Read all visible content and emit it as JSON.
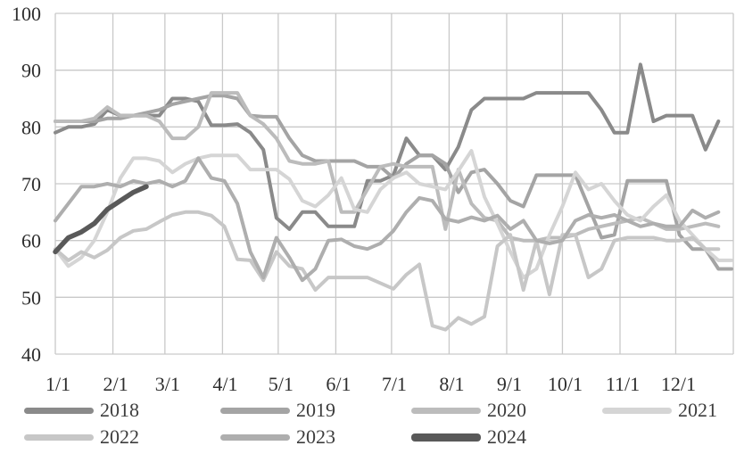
{
  "chart_data": {
    "type": "line",
    "title": "",
    "xlabel": "",
    "ylabel": "",
    "ylim": [
      40,
      100
    ],
    "y_ticks": [
      40,
      50,
      60,
      70,
      80,
      90,
      100
    ],
    "y_tick_labels": [
      "40",
      "50",
      "60",
      "70",
      "80",
      "90",
      "100"
    ],
    "x_tick_labels": [
      "1/1",
      "2/1",
      "3/1",
      "4/1",
      "5/1",
      "6/1",
      "7/1",
      "8/1",
      "9/1",
      "10/1",
      "11/1",
      "12/1"
    ],
    "x_tick_days": [
      0,
      31,
      59,
      90,
      120,
      151,
      181,
      212,
      243,
      273,
      304,
      334
    ],
    "x_total_days": 365,
    "grid": true,
    "gridline_color": "#c9c9c9",
    "legend_position": "bottom",
    "point_interval_days": 7,
    "series": [
      {
        "name": "2018",
        "color": "#8a8a8a",
        "width": 4,
        "start_week": 0,
        "values": [
          79,
          80,
          80,
          80.5,
          83,
          82,
          82,
          82,
          82,
          85,
          85,
          84.5,
          80.3,
          80.3,
          80.5,
          79,
          76,
          64,
          62,
          65,
          65,
          62.5,
          62.5,
          62.5,
          70.5,
          70.5,
          71.5,
          78,
          75,
          75,
          72.5,
          76.5,
          83,
          85,
          85,
          85,
          85,
          86,
          86,
          86,
          86,
          86,
          83,
          79,
          79,
          91,
          81,
          82,
          82,
          82,
          76,
          81
        ]
      },
      {
        "name": "2019",
        "color": "#a4a4a4",
        "width": 4,
        "start_week": 0,
        "values": [
          81,
          81,
          81,
          81,
          81.5,
          81.5,
          82,
          82.5,
          83,
          84,
          84.5,
          85,
          85.5,
          85.5,
          85,
          82,
          81.8,
          81.8,
          78,
          75,
          74,
          74,
          74,
          74,
          73,
          73,
          71,
          73.5,
          75,
          75,
          73.5,
          68.5,
          72,
          72.5,
          70,
          67,
          66,
          71.5,
          71.5,
          71.5,
          71.5,
          66,
          60.5,
          61,
          70.5,
          70.5,
          70.5,
          70.5,
          61,
          58.5,
          58.5,
          55,
          55
        ]
      },
      {
        "name": "2020",
        "color": "#bcbcbc",
        "width": 4,
        "start_week": 0,
        "values": [
          81,
          81,
          81,
          81.5,
          83.5,
          82,
          82,
          82,
          81,
          78,
          78,
          80,
          86,
          86,
          86,
          82,
          80.5,
          78,
          74,
          73.5,
          73.5,
          74,
          65,
          65,
          69,
          73,
          73.5,
          73,
          73,
          73,
          62,
          72.5,
          66.5,
          64,
          63.5,
          60.5,
          60,
          60,
          60.5,
          60.5,
          61,
          62,
          62.5,
          63,
          63.5,
          64,
          63,
          62,
          62,
          62.5,
          63,
          62.5
        ]
      },
      {
        "name": "2021",
        "color": "#d5d5d5",
        "width": 4,
        "start_week": 0,
        "values": [
          58.5,
          55.5,
          57,
          60,
          65,
          71,
          74.5,
          74.5,
          74,
          72,
          73.5,
          74.5,
          75,
          75,
          75,
          72.5,
          72.5,
          72.5,
          70.8,
          67,
          66,
          68,
          71,
          65.5,
          65,
          69,
          71,
          72,
          70,
          69.5,
          69,
          72.3,
          75.8,
          67.7,
          63,
          58,
          53.5,
          55,
          61,
          66,
          72,
          69,
          70,
          67,
          64.5,
          63.5,
          66,
          68,
          63.5,
          61,
          58.5,
          56.5,
          56.5
        ]
      },
      {
        "name": "2022",
        "color": "#c7c7c7",
        "width": 4,
        "start_week": 0,
        "values": [
          58.5,
          56.5,
          58,
          57,
          58.3,
          60.5,
          61.7,
          62,
          63.3,
          64.5,
          65,
          65,
          64.4,
          62.5,
          56.7,
          56.5,
          53,
          58,
          55.5,
          55,
          51.3,
          53.5,
          53.5,
          53.5,
          53.5,
          52.5,
          51.5,
          54,
          55.8,
          45,
          44.3,
          46.4,
          45.3,
          46.6,
          59,
          61,
          51.3,
          60,
          50.5,
          61,
          61,
          53.5,
          55,
          60,
          60.5,
          60.5,
          60.5,
          60,
          60,
          60.5,
          58.5,
          58.5
        ]
      },
      {
        "name": "2023",
        "color": "#aeaeae",
        "width": 4,
        "start_week": 0,
        "values": [
          63.5,
          66.5,
          69.5,
          69.5,
          70,
          69.5,
          70.5,
          70,
          70.5,
          69.5,
          70.5,
          74.5,
          71,
          70.5,
          66.5,
          58,
          53.5,
          60.5,
          57,
          53,
          55,
          60,
          60.2,
          59,
          58.5,
          59.5,
          61.7,
          65,
          67.5,
          67,
          63.8,
          63.3,
          64.1,
          63.5,
          64.4,
          62,
          63.5,
          60,
          59.5,
          60,
          63.5,
          64.5,
          64,
          64.5,
          63.5,
          62.5,
          63,
          62.5,
          62.5,
          65.3,
          64,
          65
        ]
      },
      {
        "name": "2024",
        "color": "#595959",
        "width": 5.5,
        "start_week": 0,
        "values": [
          58,
          60.5,
          61.5,
          63,
          65.5,
          67,
          68.5,
          69.5
        ]
      }
    ]
  },
  "legend": {
    "items": [
      {
        "label": "2018"
      },
      {
        "label": "2019"
      },
      {
        "label": "2020"
      },
      {
        "label": "2021"
      },
      {
        "label": "2022"
      },
      {
        "label": "2023"
      },
      {
        "label": "2024"
      }
    ]
  }
}
